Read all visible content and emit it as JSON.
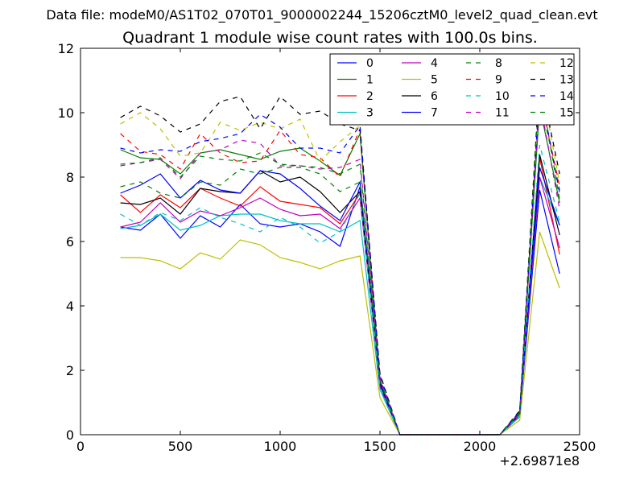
{
  "suptitle": "Data file: modeM0/AS1T02_070T01_9000002244_15206cztM0_level2_quad_clean.evt",
  "chart_data": {
    "type": "line",
    "title": "Quadrant 1 module wise count rates with 100.0s bins.",
    "xlabel": "",
    "ylabel": "",
    "x_offset_label": "+2.69871e8",
    "xlim": [
      0,
      2500
    ],
    "ylim": [
      0,
      12
    ],
    "x_ticks": [
      0,
      500,
      1000,
      1500,
      2000,
      2500
    ],
    "y_ticks": [
      0,
      2,
      4,
      6,
      8,
      10,
      12
    ],
    "grid": false,
    "legend": {
      "placement": "top-right",
      "columns": 4
    },
    "x": [
      200,
      300,
      400,
      500,
      600,
      700,
      800,
      900,
      1000,
      1100,
      1200,
      1300,
      1400,
      1500,
      1600,
      1700,
      1800,
      1900,
      2000,
      2100,
      2200,
      2300,
      2400
    ],
    "series": [
      {
        "name": "0",
        "color": "#0000ff",
        "dash": "solid",
        "values": [
          6.45,
          6.35,
          6.85,
          6.1,
          6.8,
          6.45,
          7.15,
          6.55,
          6.45,
          6.55,
          6.3,
          5.85,
          7.7,
          1.5,
          0,
          0,
          0,
          0,
          0,
          0,
          0.6,
          7.6,
          5.0
        ]
      },
      {
        "name": "1",
        "color": "#008000",
        "dash": "solid",
        "values": [
          8.85,
          8.6,
          8.55,
          8.1,
          8.75,
          8.85,
          8.7,
          8.55,
          8.8,
          8.9,
          8.5,
          8.05,
          9.35,
          1.7,
          0,
          0,
          0,
          0,
          0,
          0,
          0.7,
          10.2,
          7.2
        ]
      },
      {
        "name": "2",
        "color": "#ff0000",
        "dash": "solid",
        "values": [
          7.45,
          6.9,
          7.45,
          7.05,
          7.65,
          7.35,
          7.1,
          7.7,
          7.25,
          7.15,
          7.05,
          6.55,
          7.5,
          1.6,
          0,
          0,
          0,
          0,
          0,
          0,
          0.65,
          8.6,
          5.6
        ]
      },
      {
        "name": "3",
        "color": "#00bfbf",
        "dash": "solid",
        "values": [
          6.4,
          6.5,
          6.85,
          6.35,
          6.5,
          6.8,
          6.85,
          6.85,
          6.65,
          6.55,
          6.55,
          6.3,
          6.65,
          1.4,
          0,
          0,
          0,
          0,
          0,
          0,
          0.55,
          8.0,
          6.5
        ]
      },
      {
        "name": "4",
        "color": "#bf00bf",
        "dash": "solid",
        "values": [
          6.45,
          6.6,
          7.2,
          6.6,
          6.95,
          6.8,
          7.05,
          7.35,
          7.0,
          6.8,
          6.85,
          6.4,
          7.35,
          1.55,
          0,
          0,
          0,
          0,
          0,
          0,
          0.6,
          8.0,
          5.8
        ]
      },
      {
        "name": "5",
        "color": "#bfbf00",
        "dash": "solid",
        "values": [
          5.5,
          5.5,
          5.4,
          5.15,
          5.65,
          5.45,
          6.05,
          5.9,
          5.5,
          5.35,
          5.15,
          5.4,
          5.55,
          1.15,
          0,
          0,
          0,
          0,
          0,
          0,
          0.45,
          6.3,
          4.55
        ]
      },
      {
        "name": "6",
        "color": "#000000",
        "dash": "solid",
        "values": [
          7.2,
          7.15,
          7.35,
          6.85,
          7.65,
          7.55,
          7.5,
          8.2,
          7.85,
          8.0,
          7.55,
          6.9,
          7.55,
          1.6,
          0,
          0,
          0,
          0,
          0,
          0,
          0.65,
          8.7,
          6.2
        ]
      },
      {
        "name": "7",
        "color": "#0000ff",
        "dash": "solid",
        "values": [
          7.5,
          7.75,
          8.1,
          7.35,
          7.9,
          7.6,
          7.5,
          8.2,
          8.1,
          7.65,
          7.1,
          6.65,
          7.85,
          1.65,
          0,
          0,
          0,
          0,
          0,
          0,
          0.65,
          8.3,
          6.5
        ]
      },
      {
        "name": "8",
        "color": "#008000",
        "dash": "dashed",
        "values": [
          7.7,
          7.85,
          7.5,
          7.35,
          7.85,
          7.75,
          8.25,
          8.1,
          8.3,
          8.3,
          8.1,
          7.55,
          7.85,
          1.7,
          0,
          0,
          0,
          0,
          0,
          0,
          0.65,
          10.5,
          7.6
        ]
      },
      {
        "name": "9",
        "color": "#ff0000",
        "dash": "dashed",
        "values": [
          9.35,
          8.8,
          8.7,
          8.25,
          9.35,
          8.75,
          8.45,
          8.5,
          9.45,
          8.7,
          8.6,
          8.0,
          9.5,
          1.75,
          0,
          0,
          0,
          0,
          0,
          0,
          0.7,
          10.6,
          7.7
        ]
      },
      {
        "name": "10",
        "color": "#00bfbf",
        "dash": "dashed",
        "values": [
          6.85,
          6.5,
          6.9,
          6.65,
          7.05,
          6.75,
          6.55,
          6.3,
          6.75,
          6.45,
          5.95,
          6.3,
          7.5,
          1.5,
          0,
          0,
          0,
          0,
          0,
          0,
          0.6,
          9.0,
          6.6
        ]
      },
      {
        "name": "11",
        "color": "#bf00bf",
        "dash": "dashed",
        "values": [
          8.35,
          8.45,
          8.55,
          7.95,
          8.75,
          8.85,
          9.15,
          9.05,
          8.35,
          8.35,
          8.25,
          8.3,
          8.55,
          1.75,
          0,
          0,
          0,
          0,
          0,
          0,
          0.7,
          10.4,
          7.0
        ]
      },
      {
        "name": "12",
        "color": "#bfbf00",
        "dash": "dashed",
        "values": [
          9.65,
          10.0,
          9.5,
          8.65,
          8.75,
          9.7,
          9.45,
          9.7,
          9.5,
          9.8,
          8.5,
          9.1,
          9.6,
          1.85,
          0,
          0,
          0,
          0,
          0,
          0,
          0.75,
          11.2,
          7.8
        ]
      },
      {
        "name": "13",
        "color": "#000000",
        "dash": "dashed",
        "values": [
          9.85,
          10.2,
          9.9,
          9.4,
          9.65,
          10.35,
          10.5,
          9.5,
          10.5,
          9.95,
          10.05,
          9.65,
          9.45,
          1.9,
          0,
          0,
          0,
          0,
          0,
          0,
          0.75,
          11.1,
          8.1
        ]
      },
      {
        "name": "14",
        "color": "#0000ff",
        "dash": "dashed",
        "values": [
          8.9,
          8.75,
          8.85,
          8.8,
          9.1,
          9.2,
          9.35,
          9.95,
          9.55,
          8.9,
          8.9,
          8.75,
          9.6,
          1.85,
          0,
          0,
          0,
          0,
          0,
          0,
          0.72,
          10.8,
          7.5
        ]
      },
      {
        "name": "15",
        "color": "#008000",
        "dash": "dashed",
        "values": [
          8.4,
          8.45,
          8.6,
          8.0,
          8.65,
          8.55,
          8.5,
          8.75,
          8.4,
          8.35,
          8.3,
          8.1,
          8.4,
          1.7,
          0,
          0,
          0,
          0,
          0,
          0,
          0.7,
          10.9,
          7.3
        ]
      }
    ]
  }
}
